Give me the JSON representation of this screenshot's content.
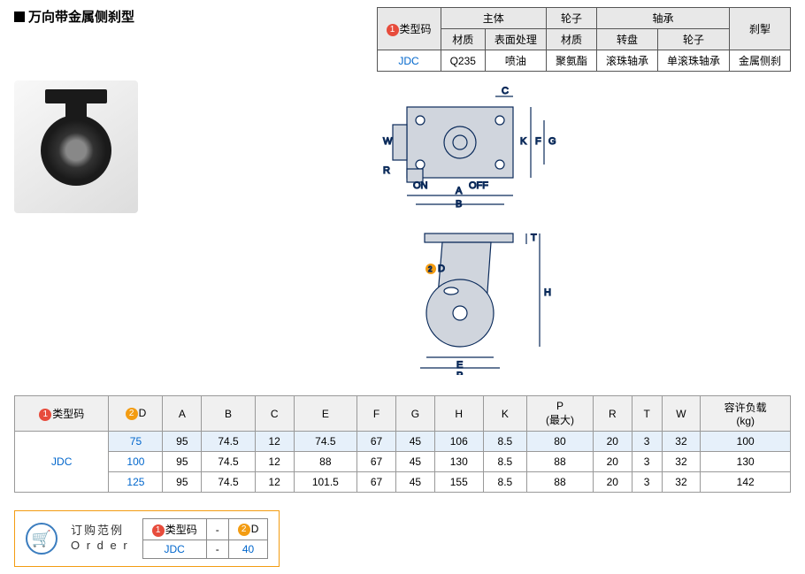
{
  "title": "万向带金属侧刹型",
  "spec": {
    "headers": {
      "typeCode": "类型码",
      "body": "主体",
      "bodyMat": "材质",
      "bodySurf": "表面处理",
      "wheel": "轮子",
      "wheelMat": "材质",
      "bearing": "轴承",
      "swivel": "转盘",
      "wheelB": "轮子",
      "brake": "刹掣"
    },
    "row": {
      "code": "JDC",
      "bodyMat": "Q235",
      "bodySurf": "喷油",
      "wheelMat": "聚氨酯",
      "swivel": "滚珠轴承",
      "wheelB": "单滚珠轴承",
      "brake": "金属侧刹"
    }
  },
  "dimTable": {
    "headers": [
      "类型码",
      "D",
      "A",
      "B",
      "C",
      "E",
      "F",
      "G",
      "H",
      "K",
      "P\n(最大)",
      "R",
      "T",
      "W",
      "容许负载\n(kg)"
    ],
    "typeCode": "JDC",
    "rows": [
      {
        "d": "75",
        "vals": [
          "95",
          "74.5",
          "12",
          "74.5",
          "67",
          "45",
          "106",
          "8.5",
          "80",
          "20",
          "3",
          "32",
          "100"
        ]
      },
      {
        "d": "100",
        "vals": [
          "95",
          "74.5",
          "12",
          "88",
          "67",
          "45",
          "130",
          "8.5",
          "88",
          "20",
          "3",
          "32",
          "130"
        ]
      },
      {
        "d": "125",
        "vals": [
          "95",
          "74.5",
          "12",
          "101.5",
          "67",
          "45",
          "155",
          "8.5",
          "88",
          "20",
          "3",
          "32",
          "142"
        ]
      }
    ]
  },
  "order": {
    "label1": "订购范例",
    "label2": "O r d e r",
    "cells": [
      "类型码",
      "-",
      "D",
      "JDC",
      "-",
      "40"
    ]
  },
  "diagLabels": {
    "A": "A",
    "B": "B",
    "C": "C",
    "E": "E",
    "F": "F",
    "G": "G",
    "H": "H",
    "K": "K",
    "P": "P",
    "R": "R",
    "T": "T",
    "W": "W",
    "D": "D",
    "ON": "ON",
    "OFF": "OFF"
  },
  "colors": {
    "line": "#0a2a5a",
    "fill": "#d0d5dd",
    "badge1": "#e74c3c",
    "badge2": "#f39c12",
    "link": "#0066cc",
    "hl": "#e6f0fa"
  }
}
